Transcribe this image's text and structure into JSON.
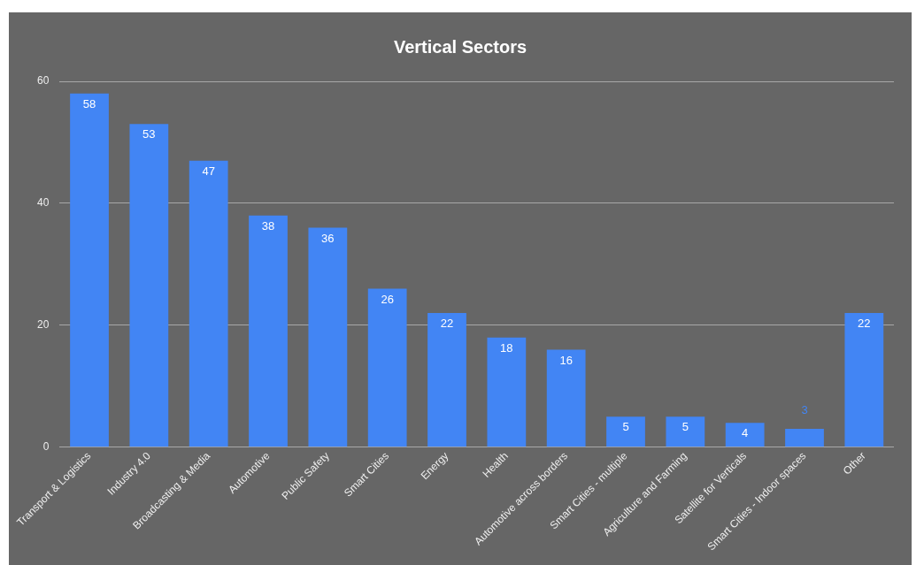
{
  "chart_data": {
    "type": "bar",
    "title": "Vertical Sectors",
    "categories": [
      "Transport & Logistics",
      "Industry 4.0",
      "Broadcasting & Media",
      "Automotive",
      "Public Safety",
      "Smart Cities",
      "Energy",
      "Health",
      "Automotive across borders",
      "Smart Cities - multiple",
      "Agriculture and Farming",
      "Satellite for Verticals",
      "Smart Cities - Indoor spaces",
      "Other"
    ],
    "values": [
      58,
      53,
      47,
      38,
      36,
      26,
      22,
      18,
      16,
      5,
      5,
      4,
      3,
      22
    ],
    "color": "#4285f4",
    "ylim": [
      0,
      60
    ],
    "yticks": [
      0,
      20,
      40,
      60
    ],
    "grid": "y",
    "data_labels": true,
    "legend": false
  }
}
